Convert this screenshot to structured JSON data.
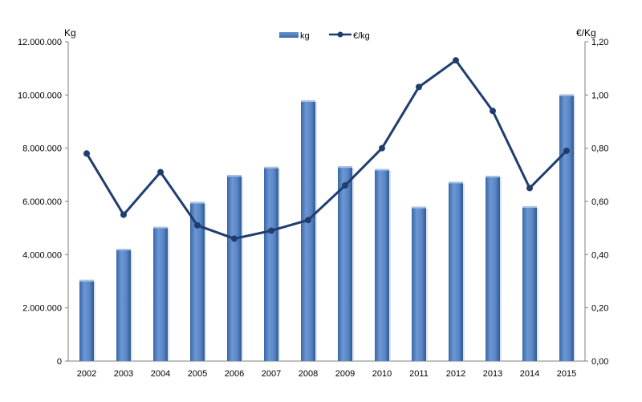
{
  "chart_data": {
    "type": "bar",
    "categories": [
      "2002",
      "2003",
      "2004",
      "2005",
      "2006",
      "2007",
      "2008",
      "2009",
      "2010",
      "2011",
      "2012",
      "2013",
      "2014",
      "2015"
    ],
    "series": [
      {
        "name": "kg",
        "type": "bar",
        "axis": "left",
        "color": "#4f81bd",
        "values": [
          3050000,
          4220000,
          5050000,
          5980000,
          6990000,
          7300000,
          9800000,
          7320000,
          7220000,
          5800000,
          6740000,
          6960000,
          5820000,
          10020000
        ]
      },
      {
        "name": "€/kg",
        "type": "line",
        "axis": "right",
        "color": "#1f3e6e",
        "values": [
          0.78,
          0.55,
          0.71,
          0.51,
          0.46,
          0.49,
          0.53,
          0.66,
          0.8,
          1.03,
          1.13,
          0.94,
          0.65,
          0.79
        ]
      }
    ],
    "ylabel_left": "Kg",
    "ylabel_right": "€/Kg",
    "ylim_left": [
      0,
      12000000
    ],
    "ylim_right": [
      0,
      1.2
    ],
    "yticks_left": [
      "0",
      "2.000.000",
      "4.000.000",
      "6.000.000",
      "8.000.000",
      "10.000.000",
      "12.000.000"
    ],
    "yticks_right": [
      "0,00",
      "0,20",
      "0,40",
      "0,60",
      "0,80",
      "1,00",
      "1,20"
    ],
    "grid": false,
    "legend_position": "top-center"
  }
}
